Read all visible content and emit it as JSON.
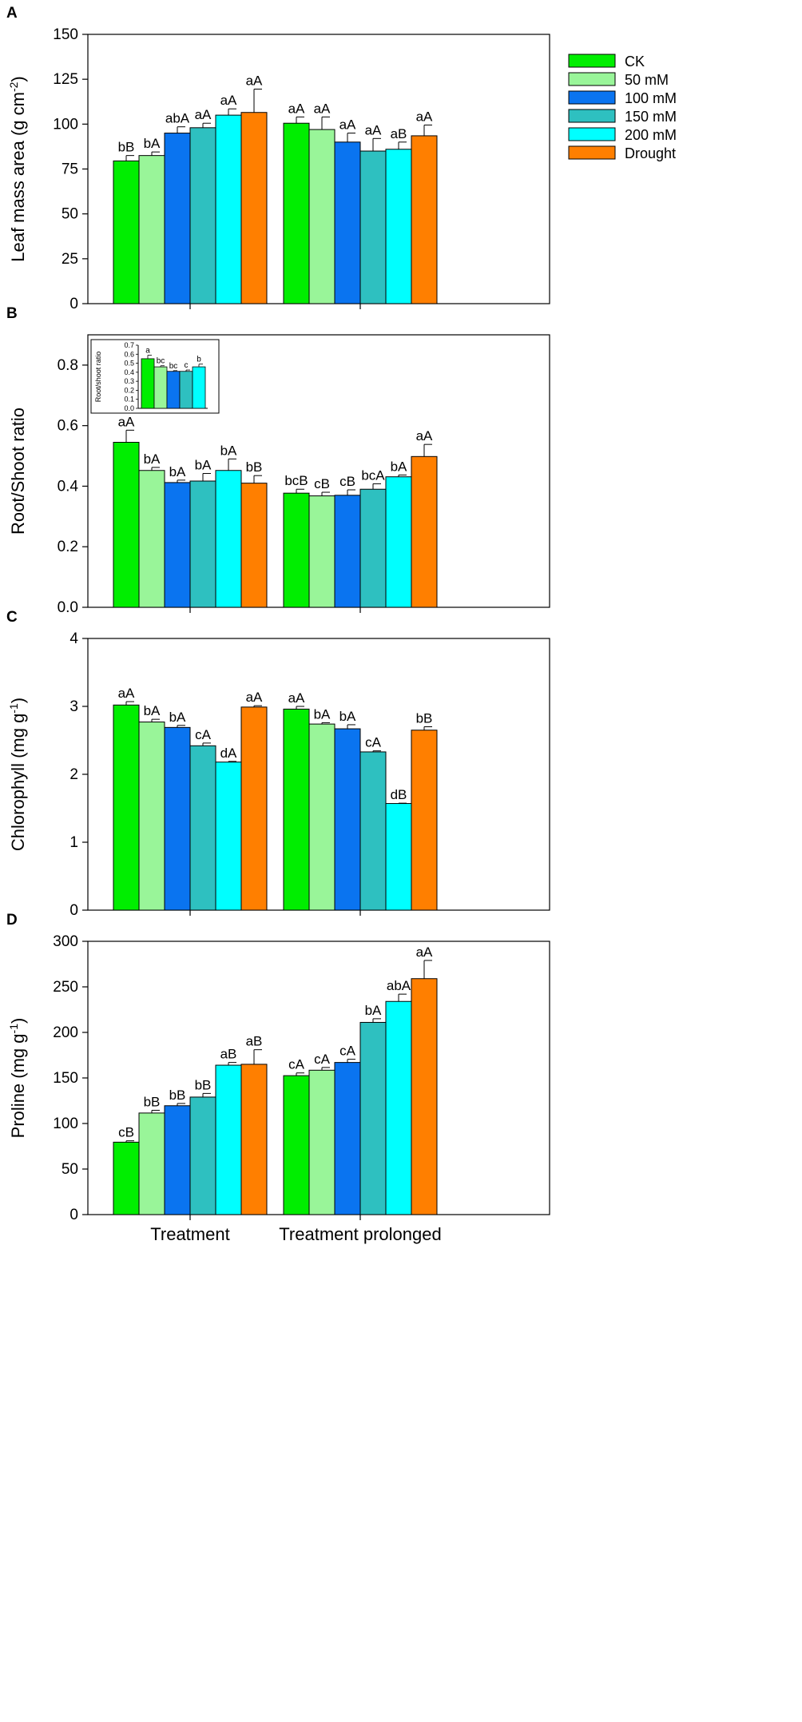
{
  "colors": [
    "#00ee00",
    "#99f599",
    "#0a74f0",
    "#2ec0c0",
    "#00ffff",
    "#ff7f00"
  ],
  "legend": [
    "CK",
    "50 mM",
    "100 mM",
    "150 mM",
    "200 mM",
    "Drought"
  ],
  "groups": [
    "Treatment",
    "Treatment prolonged"
  ],
  "chart_data": [
    {
      "type": "bar",
      "panel": "A",
      "ylabel": "Leaf mass area (g cm",
      "ylabel_sup": "-2",
      "ylabel_end": ")",
      "ylim": [
        0,
        150
      ],
      "yticks": [
        0,
        25,
        50,
        75,
        100,
        125,
        150
      ],
      "categories": [
        "Treatment",
        "Treatment prolonged"
      ],
      "series": [
        {
          "name": "CK",
          "values": [
            79.5,
            100.5
          ],
          "errors": [
            3,
            3.5
          ],
          "letters": [
            "bB",
            "aA"
          ]
        },
        {
          "name": "50 mM",
          "values": [
            82.5,
            97
          ],
          "errors": [
            2,
            7
          ],
          "letters": [
            "bA",
            "aA"
          ]
        },
        {
          "name": "100 mM",
          "values": [
            95,
            90
          ],
          "errors": [
            3.5,
            5
          ],
          "letters": [
            "abA",
            "aA"
          ]
        },
        {
          "name": "150 mM",
          "values": [
            98,
            85
          ],
          "errors": [
            2.5,
            7
          ],
          "letters": [
            "aA",
            "aA"
          ]
        },
        {
          "name": "200 mM",
          "values": [
            105,
            86
          ],
          "errors": [
            3.5,
            4
          ],
          "letters": [
            "aA",
            "aB"
          ]
        },
        {
          "name": "Drought",
          "values": [
            106.5,
            93.5
          ],
          "errors": [
            13,
            6
          ],
          "letters": [
            "aA",
            "aA"
          ]
        }
      ]
    },
    {
      "type": "bar",
      "panel": "B",
      "ylabel": "Root/Shoot ratio",
      "ylim": [
        0,
        0.9
      ],
      "yticks": [
        0.0,
        0.2,
        0.4,
        0.6,
        0.8
      ],
      "categories": [
        "Treatment",
        "Treatment prolonged"
      ],
      "series": [
        {
          "name": "CK",
          "values": [
            0.545,
            0.377
          ],
          "errors": [
            0.04,
            0.013
          ],
          "letters": [
            "aA",
            "bcB"
          ]
        },
        {
          "name": "50 mM",
          "values": [
            0.452,
            0.368
          ],
          "errors": [
            0.01,
            0.012
          ],
          "letters": [
            "bA",
            "cB"
          ]
        },
        {
          "name": "100 mM",
          "values": [
            0.412,
            0.37
          ],
          "errors": [
            0.008,
            0.018
          ],
          "letters": [
            "bA",
            "cB"
          ]
        },
        {
          "name": "150 mM",
          "values": [
            0.417,
            0.39
          ],
          "errors": [
            0.025,
            0.018
          ],
          "letters": [
            "bA",
            "bcA"
          ]
        },
        {
          "name": "200 mM",
          "values": [
            0.452,
            0.431
          ],
          "errors": [
            0.038,
            0.006
          ],
          "letters": [
            "bA",
            "bA"
          ]
        },
        {
          "name": "Drought",
          "values": [
            0.41,
            0.498
          ],
          "errors": [
            0.025,
            0.04
          ],
          "letters": [
            "bB",
            "aA"
          ]
        }
      ],
      "inset": {
        "ylabel": "Root/shoot ratio",
        "ylim": [
          0,
          0.7
        ],
        "yticks": [
          0.0,
          0.1,
          0.2,
          0.3,
          0.4,
          0.5,
          0.6,
          0.7
        ],
        "values": [
          0.55,
          0.46,
          0.41,
          0.41,
          0.46
        ],
        "errors": [
          0.04,
          0.012,
          0.008,
          0.015,
          0.03
        ],
        "letters": [
          "a",
          "bc",
          "bc",
          "c",
          "b"
        ]
      }
    },
    {
      "type": "bar",
      "panel": "C",
      "ylabel": "Chlorophyll (mg g",
      "ylabel_sup": "-1",
      "ylabel_end": ")",
      "ylim": [
        0,
        4
      ],
      "yticks": [
        0,
        1,
        2,
        3,
        4
      ],
      "categories": [
        "Treatment",
        "Treatment prolonged"
      ],
      "series": [
        {
          "name": "CK",
          "values": [
            3.02,
            2.96
          ],
          "errors": [
            0.05,
            0.04
          ],
          "letters": [
            "aA",
            "aA"
          ]
        },
        {
          "name": "50 mM",
          "values": [
            2.77,
            2.74
          ],
          "errors": [
            0.04,
            0.02
          ],
          "letters": [
            "bA",
            "bA"
          ]
        },
        {
          "name": "100 mM",
          "values": [
            2.69,
            2.67
          ],
          "errors": [
            0.03,
            0.06
          ],
          "letters": [
            "bA",
            "bA"
          ]
        },
        {
          "name": "150 mM",
          "values": [
            2.42,
            2.33
          ],
          "errors": [
            0.04,
            0.015
          ],
          "letters": [
            "cA",
            "cA"
          ]
        },
        {
          "name": "200 mM",
          "values": [
            2.18,
            1.57
          ],
          "errors": [
            0.01,
            0.005
          ],
          "letters": [
            "dA",
            "dB"
          ]
        },
        {
          "name": "Drought",
          "values": [
            2.99,
            2.65
          ],
          "errors": [
            0.02,
            0.05
          ],
          "letters": [
            "aA",
            "bB"
          ]
        }
      ]
    },
    {
      "type": "bar",
      "panel": "D",
      "ylabel": "Proline (mg g",
      "ylabel_sup": "-1",
      "ylabel_end": ")",
      "ylim": [
        0,
        300
      ],
      "yticks": [
        0,
        50,
        100,
        150,
        200,
        250,
        300
      ],
      "categories": [
        "Treatment",
        "Treatment prolonged"
      ],
      "series": [
        {
          "name": "CK",
          "values": [
            79.5,
            152.5
          ],
          "errors": [
            1.5,
            3
          ],
          "letters": [
            "cB",
            "cA"
          ]
        },
        {
          "name": "50 mM",
          "values": [
            111.5,
            158.5
          ],
          "errors": [
            3,
            3
          ],
          "letters": [
            "bB",
            "cA"
          ]
        },
        {
          "name": "100 mM",
          "values": [
            119.5,
            167
          ],
          "errors": [
            2.5,
            3.5
          ],
          "letters": [
            "bB",
            "cA"
          ]
        },
        {
          "name": "150 mM",
          "values": [
            129,
            211
          ],
          "errors": [
            4,
            4
          ],
          "letters": [
            "bB",
            "bA"
          ]
        },
        {
          "name": "200 mM",
          "values": [
            164,
            234
          ],
          "errors": [
            3,
            8
          ],
          "letters": [
            "aB",
            "abA"
          ]
        },
        {
          "name": "Drought",
          "values": [
            165,
            259
          ],
          "errors": [
            16,
            20
          ],
          "letters": [
            "aB",
            "aA"
          ]
        }
      ]
    }
  ]
}
